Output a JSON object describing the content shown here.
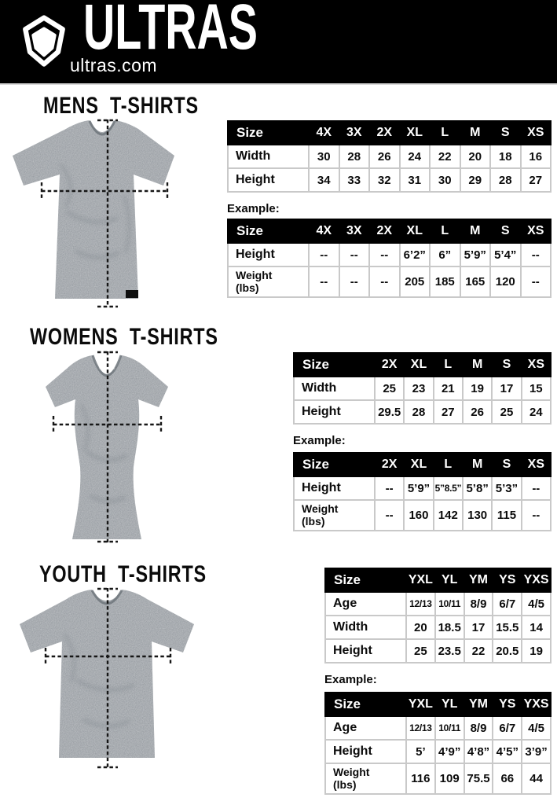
{
  "header": {
    "brand": "ULTRAS",
    "site": "ultras.com",
    "logo_icon": "pentagon-shield-icon"
  },
  "colors": {
    "accent": "#000000",
    "table_border": "#c9c9c9",
    "shirt_gray": "#8d9399"
  },
  "sections": [
    {
      "title": "MENS T-SHIRTS",
      "shirt_alt": "mens heather grey t-shirt with width and height measurement lines",
      "example_label": "Example:",
      "size_table": {
        "columns": [
          "Size",
          "4X",
          "3X",
          "2X",
          "XL",
          "L",
          "M",
          "S",
          "XS"
        ],
        "rows": [
          {
            "label": "Width",
            "values": [
              "30",
              "28",
              "26",
              "24",
              "22",
              "20",
              "18",
              "16"
            ]
          },
          {
            "label": "Height",
            "values": [
              "34",
              "33",
              "32",
              "31",
              "30",
              "29",
              "28",
              "27"
            ]
          }
        ]
      },
      "example_table": {
        "columns": [
          "Size",
          "4X",
          "3X",
          "2X",
          "XL",
          "L",
          "M",
          "S",
          "XS"
        ],
        "rows": [
          {
            "label": "Height",
            "values": [
              "--",
              "--",
              "--",
              "6’2”",
              "6”",
              "5’9”",
              "5’4”",
              "--"
            ]
          },
          {
            "label": "Weight\n(lbs)",
            "values": [
              "--",
              "--",
              "--",
              "205",
              "185",
              "165",
              "120",
              "--"
            ]
          }
        ]
      }
    },
    {
      "title": "WOMENS T-SHIRTS",
      "shirt_alt": "womens fitted heather grey t-shirt with width and height measurement lines",
      "example_label": "Example:",
      "size_table": {
        "columns": [
          "Size",
          "2X",
          "XL",
          "L",
          "M",
          "S",
          "XS"
        ],
        "rows": [
          {
            "label": "Width",
            "values": [
              "25",
              "23",
              "21",
              "19",
              "17",
              "15"
            ]
          },
          {
            "label": "Height",
            "values": [
              "29.5",
              "28",
              "27",
              "26",
              "25",
              "24"
            ]
          }
        ]
      },
      "example_table": {
        "columns": [
          "Size",
          "2X",
          "XL",
          "L",
          "M",
          "S",
          "XS"
        ],
        "rows": [
          {
            "label": "Height",
            "values": [
              "--",
              "5’9”",
              "5”8.5”",
              "5’8”",
              "5’3”",
              "--"
            ]
          },
          {
            "label": "Weight\n(lbs)",
            "values": [
              "--",
              "160",
              "142",
              "130",
              "115",
              "--"
            ]
          }
        ]
      }
    },
    {
      "title": "YOUTH T-SHIRTS",
      "shirt_alt": "youth heather grey t-shirt with width and height measurement lines",
      "example_label": "Example:",
      "size_table": {
        "columns": [
          "Size",
          "YXL",
          "YL",
          "YM",
          "YS",
          "YXS"
        ],
        "rows": [
          {
            "label": "Age",
            "values": [
              "12/13",
              "10/11",
              "8/9",
              "6/7",
              "4/5"
            ]
          },
          {
            "label": "Width",
            "values": [
              "20",
              "18.5",
              "17",
              "15.5",
              "14"
            ]
          },
          {
            "label": "Height",
            "values": [
              "25",
              "23.5",
              "22",
              "20.5",
              "19"
            ]
          }
        ]
      },
      "example_table": {
        "columns": [
          "Size",
          "YXL",
          "YL",
          "YM",
          "YS",
          "YXS"
        ],
        "rows": [
          {
            "label": "Age",
            "values": [
              "12/13",
              "10/11",
              "8/9",
              "6/7",
              "4/5"
            ]
          },
          {
            "label": "Height",
            "values": [
              "5’",
              "4’9”",
              "4’8”",
              "4’5”",
              "3’9”"
            ]
          },
          {
            "label": "Weight\n(lbs)",
            "values": [
              "116",
              "109",
              "75.5",
              "66",
              "44"
            ]
          }
        ]
      }
    }
  ]
}
